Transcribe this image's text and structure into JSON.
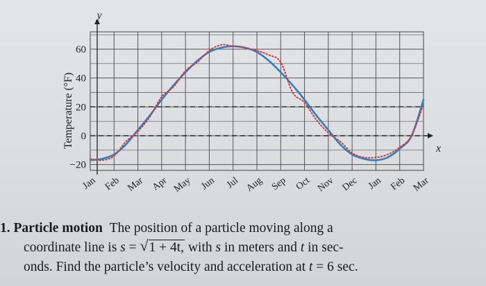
{
  "chart_data": {
    "type": "line",
    "ylabel": "Temperature (°F)",
    "x_axis_letter": "x",
    "y_axis_letter": "y",
    "categories": [
      "Jan",
      "Feb",
      "Mar",
      "Apr",
      "May",
      "Jun",
      "Jul",
      "Aug",
      "Sep",
      "Oct",
      "Nov",
      "Dec",
      "Jan",
      "Feb",
      "Mar"
    ],
    "y_ticks": [
      -20,
      0,
      20,
      40,
      60
    ],
    "ylim": [
      -24,
      72
    ],
    "grid": true,
    "dashed_reference_lines": [
      0,
      20
    ],
    "series": [
      {
        "style": "solid",
        "color": "#2f7fc1",
        "x": [
          0,
          0.5,
          1,
          1.5,
          2,
          2.5,
          3,
          3.5,
          4,
          4.5,
          5,
          5.5,
          6,
          6.5,
          7,
          7.5,
          8,
          8.5,
          9,
          9.5,
          10,
          10.5,
          11,
          11.5,
          12,
          12.5,
          13,
          13.5,
          14
        ],
        "y": [
          -17,
          -16,
          -13,
          -6,
          4,
          14,
          25,
          35,
          44,
          52,
          58,
          61,
          62,
          61,
          58,
          52,
          44,
          35,
          25,
          14,
          4,
          -6,
          -13,
          -16,
          -17,
          -15,
          -9,
          0,
          25
        ]
      },
      {
        "style": "dotted",
        "color": "#d23a3a",
        "x": [
          0,
          0.5,
          1,
          1.5,
          2,
          2.5,
          3,
          3.5,
          4,
          4.5,
          5,
          5.5,
          6,
          6.5,
          7,
          7.5,
          8,
          8.5,
          9,
          9.5,
          10,
          10.5,
          11,
          11.5,
          12,
          12.5,
          13,
          13.5,
          14
        ],
        "y": [
          -16,
          -17,
          -14,
          -4,
          3,
          13,
          27,
          34,
          45,
          51,
          59,
          63,
          62,
          61,
          59,
          56,
          51,
          30,
          23,
          11,
          2,
          -4,
          -12,
          -15,
          -15,
          -13,
          -8,
          0,
          22
        ]
      }
    ]
  },
  "problem": {
    "number": "1.",
    "title": "Particle motion",
    "line1_rest": "The position of a particle moving along a",
    "line2_a": "coordinate line is",
    "var_s": "s",
    "equals": "=",
    "sqrt_body": "1 + 4t,",
    "line2_b": "with",
    "line2_c": "in meters and",
    "var_t": "t",
    "line2_d": "in sec-",
    "line3_a": "onds. Find the particle’s velocity and acceleration at",
    "line3_b": "6 sec."
  }
}
